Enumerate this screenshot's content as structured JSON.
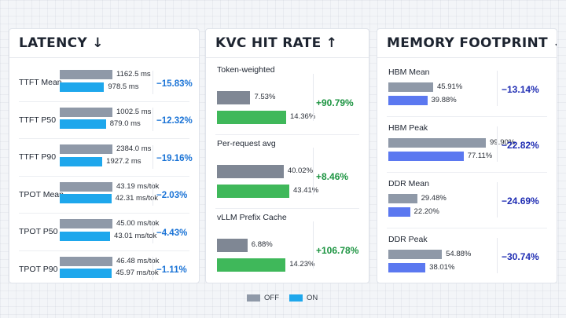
{
  "colors": {
    "off_gray": "#8f99a8",
    "on_blue": "#1ea7ec",
    "on_green": "#3fb85a",
    "on_indigo": "#5b78f0",
    "off_dark": "#7f8794",
    "delta_blue": "#1a73d6",
    "delta_green": "#1c9441",
    "delta_navy": "#1f2db3"
  },
  "legend": {
    "off_label": "OFF",
    "on_label": "ON"
  },
  "chart_data": [
    {
      "type": "bar",
      "title": "LATENCY ↓",
      "categories": [
        "TTFT Mean",
        "TTFT P50",
        "TTFT P90",
        "TPOT Mean",
        "TPOT P50",
        "TPOT P90"
      ],
      "series": [
        {
          "name": "OFF",
          "values": [
            1162.5,
            1002.5,
            2384.0,
            43.19,
            45.0,
            46.48
          ]
        },
        {
          "name": "ON",
          "values": [
            978.5,
            879.0,
            1927.2,
            42.31,
            43.01,
            45.97
          ]
        }
      ],
      "value_labels_off": [
        "1162.5 ms",
        "1002.5 ms",
        "2384.0 ms",
        "43.19 ms/tok",
        "45.00 ms/tok",
        "46.48 ms/tok"
      ],
      "value_labels_on": [
        "978.5 ms",
        "879.0 ms",
        "1927.2 ms",
        "42.31 ms/tok",
        "43.01 ms/tok",
        "45.97 ms/tok"
      ],
      "deltas": [
        "−15.83%",
        "−12.32%",
        "−19.16%",
        "−2.03%",
        "−4.43%",
        "−1.11%"
      ],
      "grid": false
    },
    {
      "type": "bar",
      "title": "KVC HIT RATE ↑",
      "categories": [
        "Token-weighted",
        "Per-request avg",
        "vLLM Prefix Cache"
      ],
      "series": [
        {
          "name": "OFF",
          "values": [
            7.53,
            40.02,
            6.88
          ]
        },
        {
          "name": "ON",
          "values": [
            14.36,
            43.41,
            14.23
          ]
        }
      ],
      "value_labels_off": [
        "7.53%",
        "40.02%",
        "6.88%"
      ],
      "value_labels_on": [
        "14.36%",
        "43.41%",
        "14.23%"
      ],
      "deltas": [
        "+90.79%",
        "+8.46%",
        "+106.78%"
      ],
      "grid": false
    },
    {
      "type": "bar",
      "title": "MEMORY FOOTPRINT ↓",
      "categories": [
        "HBM Mean",
        "HBM Peak",
        "DDR Mean",
        "DDR Peak"
      ],
      "series": [
        {
          "name": "OFF",
          "values": [
            45.91,
            99.9,
            29.48,
            54.88
          ]
        },
        {
          "name": "ON",
          "values": [
            39.88,
            77.11,
            22.2,
            38.01
          ]
        }
      ],
      "value_labels_off": [
        "45.91%",
        "99.90%",
        "29.48%",
        "54.88%"
      ],
      "value_labels_on": [
        "39.88%",
        "77.11%",
        "22.20%",
        "38.01%"
      ],
      "deltas": [
        "−13.14%",
        "−22.82%",
        "−24.69%",
        "−30.74%"
      ],
      "grid": false
    }
  ]
}
